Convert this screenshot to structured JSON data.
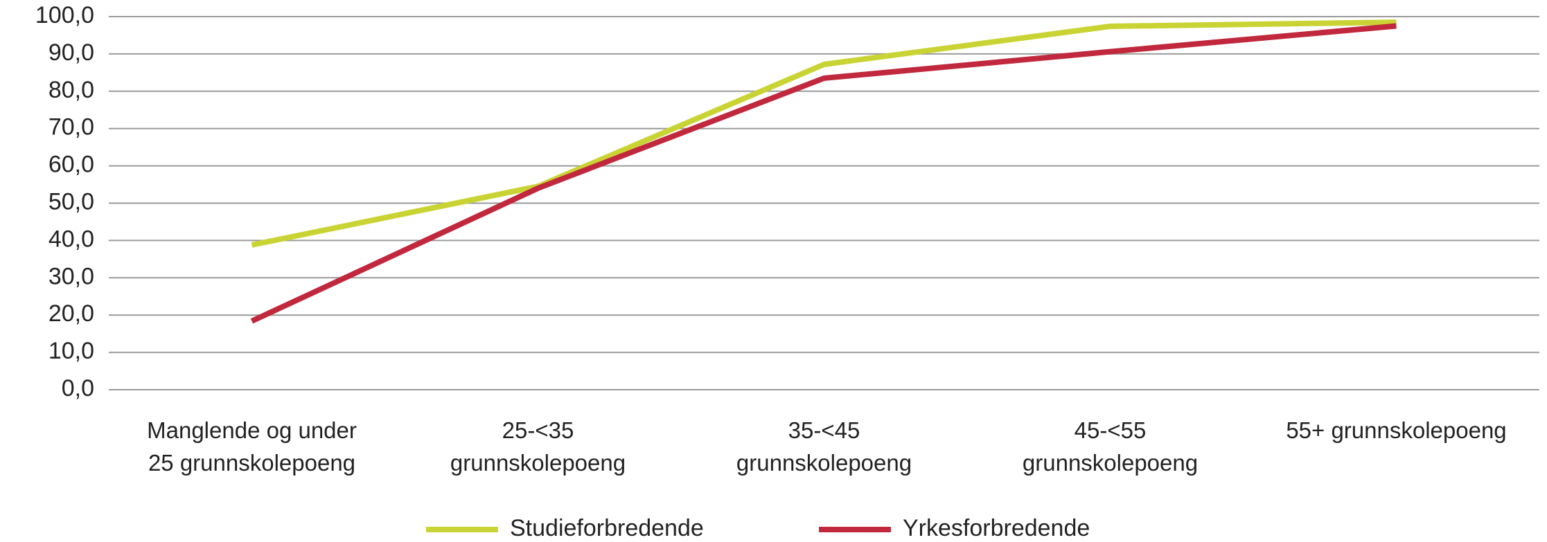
{
  "chart_data": {
    "type": "line",
    "categories": [
      "Manglende og under 25 grunnskolepoeng",
      "25-<35 grunnskolepoeng",
      "35-<45 grunnskolepoeng",
      "45-<55 grunnskolepoeng",
      "55+ grunnskolepoeng"
    ],
    "series": [
      {
        "name": "Studieforbredende",
        "color": "#c9d434",
        "values": [
          38.8,
          54.5,
          87.2,
          97.4,
          98.5
        ]
      },
      {
        "name": "Yrkesforbredende",
        "color": "#c1283d",
        "values": [
          18.4,
          54.0,
          83.5,
          90.6,
          97.5
        ]
      }
    ],
    "ylim": [
      0,
      100
    ],
    "yticks": [
      {
        "value": 0,
        "label": "0,0"
      },
      {
        "value": 10,
        "label": "10,0"
      },
      {
        "value": 20,
        "label": "20,0"
      },
      {
        "value": 30,
        "label": "30,0"
      },
      {
        "value": 40,
        "label": "40,0"
      },
      {
        "value": 50,
        "label": "50,0"
      },
      {
        "value": 60,
        "label": "60,0"
      },
      {
        "value": 70,
        "label": "70,0"
      },
      {
        "value": 80,
        "label": "80,0"
      },
      {
        "value": 90,
        "label": "90,0"
      },
      {
        "value": 100,
        "label": "100,0"
      }
    ],
    "grid": true,
    "legend": "bottom"
  }
}
